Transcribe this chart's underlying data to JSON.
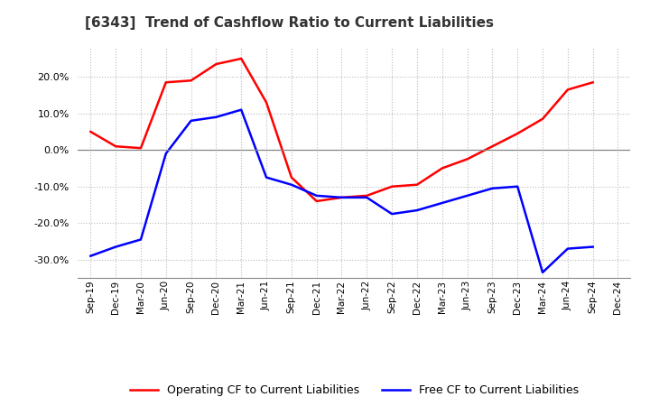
{
  "title": "[6343]  Trend of Cashflow Ratio to Current Liabilities",
  "x_labels": [
    "Sep-19",
    "Dec-19",
    "Mar-20",
    "Jun-20",
    "Sep-20",
    "Dec-20",
    "Mar-21",
    "Jun-21",
    "Sep-21",
    "Dec-21",
    "Mar-22",
    "Jun-22",
    "Sep-22",
    "Dec-22",
    "Mar-23",
    "Jun-23",
    "Sep-23",
    "Dec-23",
    "Mar-24",
    "Jun-24",
    "Sep-24",
    "Dec-24"
  ],
  "operating_cf": [
    5.0,
    1.0,
    0.5,
    18.5,
    19.0,
    23.5,
    25.0,
    13.0,
    -7.5,
    -14.0,
    -13.0,
    -12.5,
    -10.0,
    -9.5,
    -5.0,
    -2.5,
    1.0,
    4.5,
    8.5,
    16.5,
    18.5,
    null
  ],
  "free_cf": [
    -29.0,
    -26.5,
    -24.5,
    -1.0,
    8.0,
    9.0,
    11.0,
    -7.5,
    -9.5,
    -12.5,
    -13.0,
    -13.0,
    -17.5,
    -16.5,
    -14.5,
    -12.5,
    -10.5,
    -10.0,
    -33.5,
    -27.0,
    -26.5,
    null
  ],
  "operating_color": "#ff0000",
  "free_color": "#0000ff",
  "ylim": [
    -35,
    28
  ],
  "yticks": [
    -30,
    -20,
    -10,
    0,
    10,
    20
  ],
  "background_color": "#ffffff",
  "grid_color": "#bbbbbb",
  "title_fontsize": 11,
  "legend_labels": [
    "Operating CF to Current Liabilities",
    "Free CF to Current Liabilities"
  ]
}
